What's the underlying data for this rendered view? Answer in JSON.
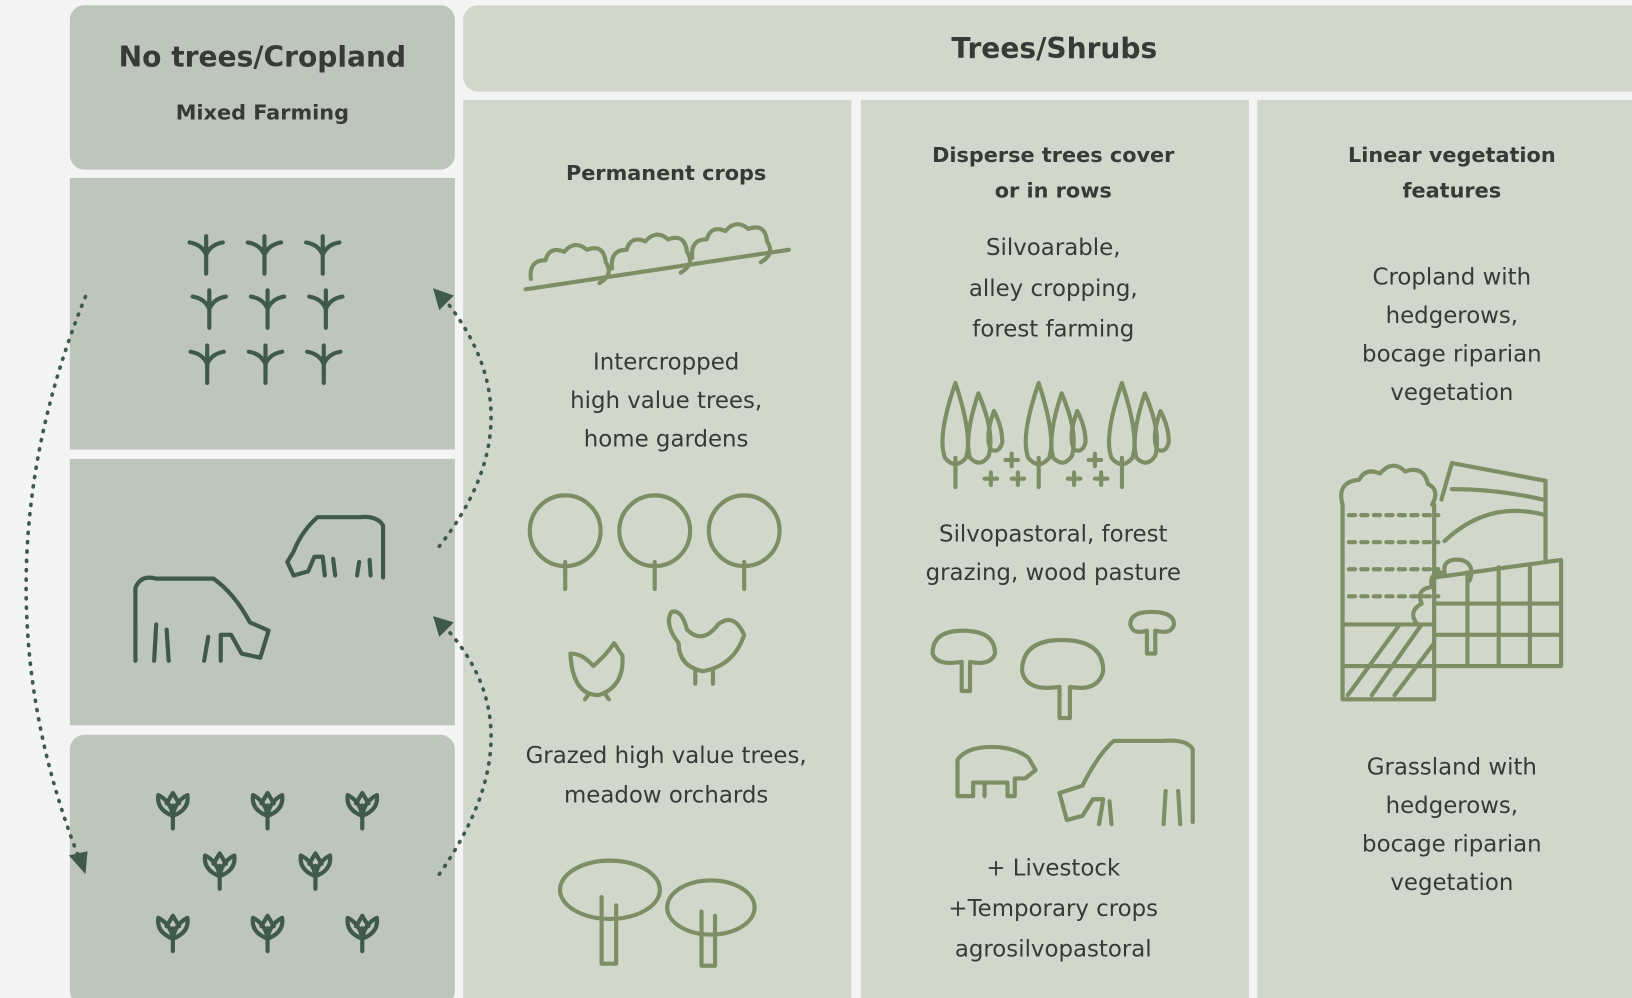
{
  "left_column": {
    "title": "No trees/Cropland",
    "subtitle": "Mixed Farming"
  },
  "right_header": {
    "title": "Trees/Shrubs"
  },
  "columns": [
    {
      "heading": [
        "Permanent crops"
      ],
      "blocks": [
        [
          "Intercropped",
          "high value trees,",
          "home gardens"
        ],
        [
          "Grazed high value trees,",
          "meadow orchards"
        ]
      ]
    },
    {
      "heading": [
        "Disperse trees cover",
        "or in rows"
      ],
      "blocks": [
        [
          "Silvoarable,",
          "alley cropping,",
          "forest farming"
        ],
        [
          "Silvopastoral, forest",
          "grazing, wood pasture"
        ],
        [
          "+ Livestock",
          "+Temporary crops",
          "agrosilvopastoral"
        ]
      ]
    },
    {
      "heading": [
        "Linear vegetation",
        "features"
      ],
      "blocks": [
        [
          "Cropland with",
          "hedgerows,",
          "bocage riparian",
          "vegetation"
        ],
        [
          "Grassland with",
          "hedgerows,",
          "bocage riparian",
          "vegetation"
        ]
      ]
    }
  ]
}
